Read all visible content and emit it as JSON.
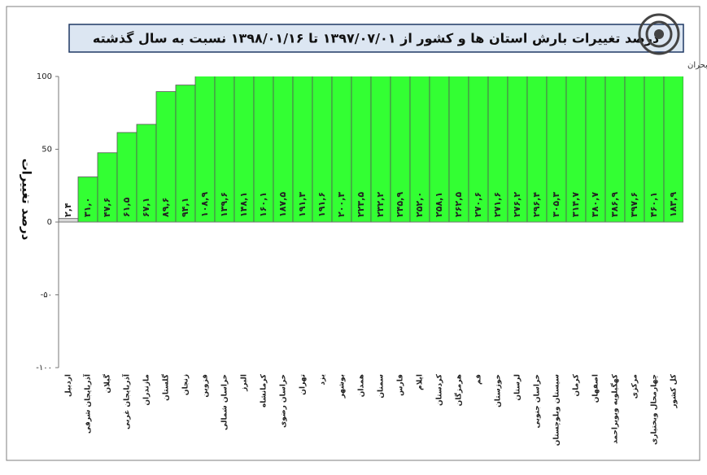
{
  "chart_data": {
    "type": "bar",
    "title": "درصد تغییرات بارش استان ها و کشور از ۱۳۹۷/۰۷/۰۱ تا ۱۳۹۸/۰۱/۱۶ نسبت به سال گذشته",
    "subtitle": "مرکز ملی خشکسالی و مدیریت بحران",
    "y_label": "درصد تغییرات",
    "categories": [
      "اردبیل",
      "آذربایجان شرقی",
      "گیلان",
      "آذربایجان غربی",
      "مازندران",
      "گلستان",
      "زنجان",
      "قزوین",
      "خراسان شمالی",
      "البرز",
      "کرمانشاه",
      "خراسان رضوی",
      "تهران",
      "یزد",
      "بوشهر",
      "همدان",
      "سمنان",
      "فارس",
      "ایلام",
      "کردستان",
      "هرمزگان",
      "قم",
      "خوزستان",
      "لرستان",
      "خراسان جنوبی",
      "سیستان وبلوچستان",
      "کرمان",
      "اصفهان",
      "کهگیلویه وبویراحمد",
      "مرکزی",
      "چهارمحال وبختیاری",
      "کل کشور"
    ],
    "values": [
      2.4,
      31.0,
      47.6,
      61.5,
      67.1,
      89.6,
      94.1,
      108.9,
      139.6,
      148.1,
      160.1,
      187.5,
      191.3,
      191.6,
      200.3,
      223.5,
      232.2,
      245.9,
      252.0,
      258.1,
      262.5,
      270.6,
      271.6,
      276.2,
      296.4,
      305.3,
      314.7,
      380.7,
      386.9,
      397.6,
      460.1,
      183.9
    ],
    "value_labels": [
      "۲,۴",
      "۳۱,۰",
      "۴۷,۶",
      "۶۱,۵",
      "۶۷,۱",
      "۸۹,۶",
      "۹۴,۱",
      "۱۰۸,۹",
      "۱۳۹,۶",
      "۱۴۸,۱",
      "۱۶۰,۱",
      "۱۸۷,۵",
      "۱۹۱,۳",
      "۱۹۱,۶",
      "۲۰۰,۳",
      "۲۲۳,۵",
      "۲۳۲,۲",
      "۲۴۵,۹",
      "۲۵۲,۰",
      "۲۵۸,۱",
      "۲۶۲,۵",
      "۲۷۰,۶",
      "۲۷۱,۶",
      "۲۷۶,۲",
      "۲۹۶,۴",
      "۳۰۵,۳",
      "۳۱۴,۷",
      "۳۸۰,۷",
      "۳۸۶,۹",
      "۳۹۷,۶",
      "۴۶۰,۱",
      "۱۸۳,۹"
    ],
    "colors": [
      "#d9d9d9",
      "#33ff33",
      "#33ff33",
      "#33ff33",
      "#33ff33",
      "#33ff33",
      "#33ff33",
      "#33ff33",
      "#33ff33",
      "#33ff33",
      "#33ff33",
      "#33ff33",
      "#33ff33",
      "#33ff33",
      "#33ff33",
      "#33ff33",
      "#33ff33",
      "#33ff33",
      "#33ff33",
      "#33ff33",
      "#33ff33",
      "#33ff33",
      "#33ff33",
      "#33ff33",
      "#33ff33",
      "#33ff33",
      "#33ff33",
      "#33ff33",
      "#33ff33",
      "#33ff33",
      "#33ff33",
      "#33ff33"
    ],
    "ylim": [
      -100,
      100
    ],
    "yticks": [
      {
        "value": -100,
        "label": "-۱۰۰"
      },
      {
        "value": -50,
        "label": "-۵۰"
      },
      0,
      50,
      100
    ]
  }
}
